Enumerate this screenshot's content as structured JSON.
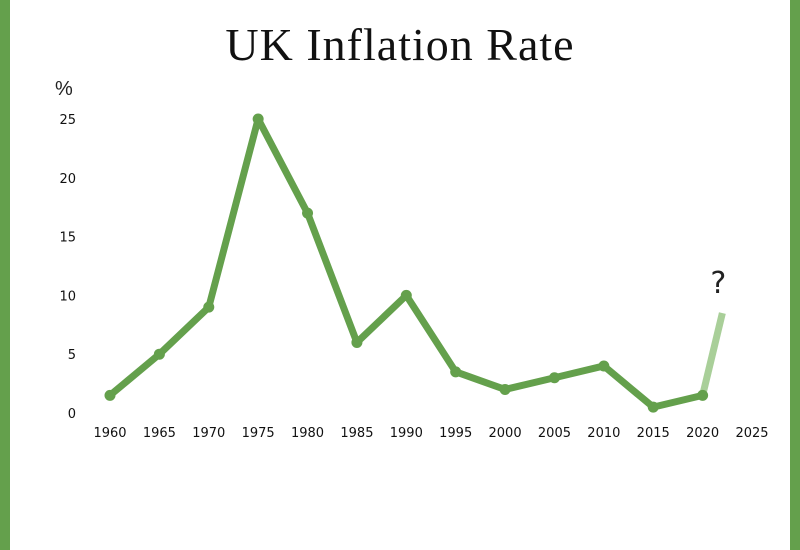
{
  "chart_data": {
    "type": "line",
    "title": "UK Inflation Rate",
    "ylabel": "%",
    "xlabel": "",
    "x_ticks": [
      1960,
      1965,
      1970,
      1975,
      1980,
      1985,
      1990,
      1995,
      2000,
      2005,
      2010,
      2015,
      2020,
      2025
    ],
    "y_ticks": [
      0,
      5,
      10,
      15,
      20,
      25
    ],
    "xlim": [
      1960,
      2025
    ],
    "ylim": [
      0,
      25
    ],
    "grid": false,
    "series": [
      {
        "x": [
          1960,
          1965,
          1970,
          1975,
          1980,
          1985,
          1990,
          1995,
          2000,
          2005,
          2010,
          2015,
          2020
        ],
        "y": [
          1.5,
          5.0,
          9.0,
          25.0,
          17.0,
          6.0,
          10.0,
          3.5,
          2.0,
          3.0,
          4.0,
          0.5,
          1.5
        ],
        "color": "#64a04c"
      }
    ],
    "projection": {
      "x": [
        2020,
        2022
      ],
      "y": [
        1.5,
        8.5
      ],
      "color": "#a9cf99",
      "annotation": "?"
    }
  }
}
